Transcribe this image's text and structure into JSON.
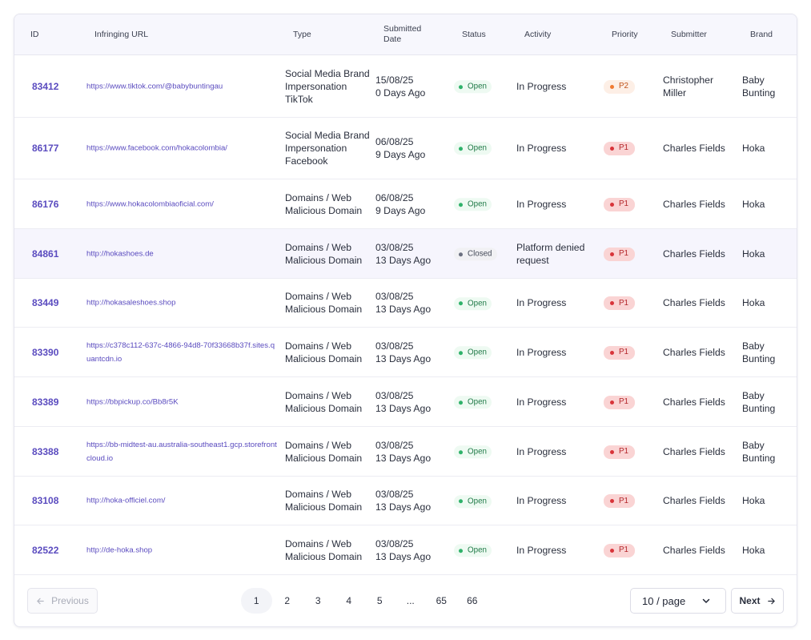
{
  "headers": {
    "id": "ID",
    "url": "Infringing URL",
    "type": "Type",
    "date": "Submitted Date",
    "status": "Status",
    "activity": "Activity",
    "priority": "Priority",
    "submitter": "Submitter",
    "brand": "Brand"
  },
  "rows": [
    {
      "id": "83412",
      "url": "https://www.tiktok.com/@babybuntingau",
      "type": "Social Media Brand Impersonation TikTok",
      "date": "15/08/25",
      "ago": "0 Days Ago",
      "status": "Open",
      "activity": "In Progress",
      "priority": "P2",
      "submitter": "Christopher Miller",
      "brand": "Baby Bunting"
    },
    {
      "id": "86177",
      "url": "https://www.facebook.com/hokacolombia/",
      "type": "Social Media Brand Impersonation Facebook",
      "date": "06/08/25",
      "ago": "9 Days Ago",
      "status": "Open",
      "activity": "In Progress",
      "priority": "P1",
      "submitter": "Charles Fields",
      "brand": "Hoka"
    },
    {
      "id": "86176",
      "url": "https://www.hokacolombiaoficial.com/",
      "type": "Domains / Web Malicious Domain",
      "date": "06/08/25",
      "ago": "9 Days Ago",
      "status": "Open",
      "activity": "In Progress",
      "priority": "P1",
      "submitter": "Charles Fields",
      "brand": "Hoka"
    },
    {
      "id": "84861",
      "url": "http://hokashoes.de",
      "type": "Domains / Web Malicious Domain",
      "date": "03/08/25",
      "ago": "13 Days Ago",
      "status": "Closed",
      "activity": "Platform denied request",
      "priority": "P1",
      "submitter": "Charles Fields",
      "brand": "Hoka"
    },
    {
      "id": "83449",
      "url": "http://hokasaleshoes.shop",
      "type": "Domains / Web Malicious Domain",
      "date": "03/08/25",
      "ago": "13 Days Ago",
      "status": "Open",
      "activity": "In Progress",
      "priority": "P1",
      "submitter": "Charles Fields",
      "brand": "Hoka"
    },
    {
      "id": "83390",
      "url": "https://c378c112-637c-4866-94d8-70f33668b37f.sites.quantcdn.io",
      "type": "Domains / Web Malicious Domain",
      "date": "03/08/25",
      "ago": "13 Days Ago",
      "status": "Open",
      "activity": "In Progress",
      "priority": "P1",
      "submitter": "Charles Fields",
      "brand": "Baby Bunting"
    },
    {
      "id": "83389",
      "url": "https://bbpickup.co/Bb8r5K",
      "type": "Domains / Web Malicious Domain",
      "date": "03/08/25",
      "ago": "13 Days Ago",
      "status": "Open",
      "activity": "In Progress",
      "priority": "P1",
      "submitter": "Charles Fields",
      "brand": "Baby Bunting"
    },
    {
      "id": "83388",
      "url": "https://bb-midtest-au.australia-southeast1.gcp.storefrontcloud.io",
      "type": "Domains / Web Malicious Domain",
      "date": "03/08/25",
      "ago": "13 Days Ago",
      "status": "Open",
      "activity": "In Progress",
      "priority": "P1",
      "submitter": "Charles Fields",
      "brand": "Baby Bunting"
    },
    {
      "id": "83108",
      "url": "http://hoka-officiel.com/",
      "type": "Domains / Web Malicious Domain",
      "date": "03/08/25",
      "ago": "13 Days Ago",
      "status": "Open",
      "activity": "In Progress",
      "priority": "P1",
      "submitter": "Charles Fields",
      "brand": "Hoka"
    },
    {
      "id": "82522",
      "url": "http://de-hoka.shop",
      "type": "Domains / Web Malicious Domain",
      "date": "03/08/25",
      "ago": "13 Days Ago",
      "status": "Open",
      "activity": "In Progress",
      "priority": "P1",
      "submitter": "Charles Fields",
      "brand": "Hoka"
    }
  ],
  "pagination": {
    "previous": "Previous",
    "next": "Next",
    "pages": [
      "1",
      "2",
      "3",
      "4",
      "5",
      "...",
      "65",
      "66"
    ],
    "current": "1",
    "page_size": "10 / page"
  },
  "colors": {
    "accent": "#5a4bbf",
    "open": "#2fb26a",
    "p1": "#d8343a",
    "p2": "#f07a31"
  }
}
